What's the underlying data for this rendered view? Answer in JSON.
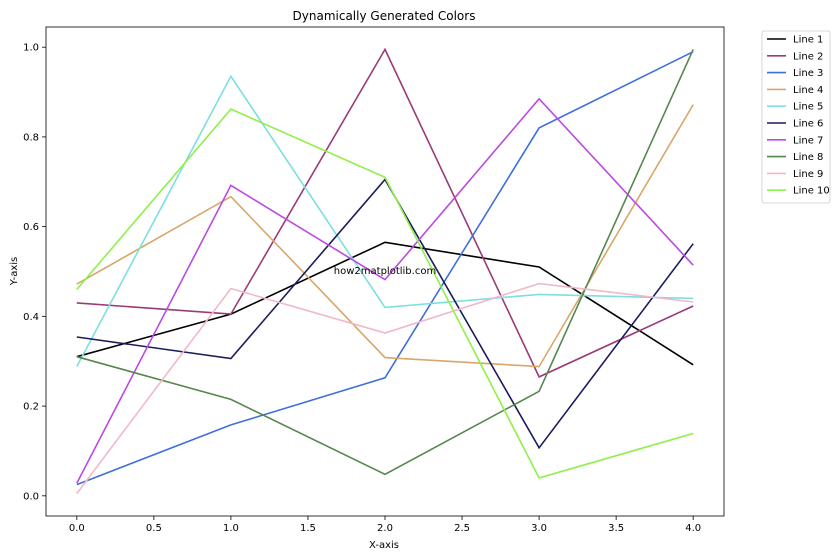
{
  "chart_data": {
    "type": "line",
    "title": "Dynamically Generated Colors",
    "xlabel": "X-axis",
    "ylabel": "Y-axis",
    "xlim": [
      -0.2,
      4.2
    ],
    "ylim": [
      -0.045,
      1.045
    ],
    "xticks": [
      0.0,
      0.5,
      1.0,
      1.5,
      2.0,
      2.5,
      3.0,
      3.5,
      4.0
    ],
    "xtick_labels": [
      "0.0",
      "0.5",
      "1.0",
      "1.5",
      "2.0",
      "2.5",
      "3.0",
      "3.5",
      "4.0"
    ],
    "yticks": [
      0.0,
      0.2,
      0.4,
      0.6,
      0.8,
      1.0
    ],
    "ytick_labels": [
      "0.0",
      "0.2",
      "0.4",
      "0.6",
      "0.8",
      "1.0"
    ],
    "grid": false,
    "legend_position": "outside-top-right",
    "annotation": "how2matplotlib.com",
    "x": [
      0,
      1,
      2,
      3,
      4
    ],
    "series": [
      {
        "name": "Line 1",
        "color": "#000000",
        "values": [
          0.31,
          0.405,
          0.565,
          0.51,
          0.292
        ]
      },
      {
        "name": "Line 2",
        "color": "#9b3a78",
        "values": [
          0.43,
          0.405,
          0.995,
          0.265,
          0.423
        ]
      },
      {
        "name": "Line 3",
        "color": "#3f6fdd",
        "values": [
          0.025,
          0.158,
          0.263,
          0.82,
          0.99
        ]
      },
      {
        "name": "Line 4",
        "color": "#d9a66a",
        "values": [
          0.472,
          0.667,
          0.308,
          0.288,
          0.872
        ]
      },
      {
        "name": "Line 5",
        "color": "#7ddfe0",
        "values": [
          0.288,
          0.935,
          0.42,
          0.449,
          0.44
        ]
      },
      {
        "name": "Line 6",
        "color": "#1c1c5c",
        "values": [
          0.354,
          0.306,
          0.705,
          0.107,
          0.562
        ]
      },
      {
        "name": "Line 7",
        "color": "#bb4be0",
        "values": [
          0.028,
          0.692,
          0.482,
          0.885,
          0.514
        ]
      },
      {
        "name": "Line 8",
        "color": "#55874f",
        "values": [
          0.31,
          0.215,
          0.048,
          0.233,
          0.995
        ]
      },
      {
        "name": "Line 9",
        "color": "#f0b8c8",
        "values": [
          0.005,
          0.462,
          0.363,
          0.473,
          0.432
        ]
      },
      {
        "name": "Line 10",
        "color": "#8ff04a",
        "values": [
          0.46,
          0.862,
          0.71,
          0.04,
          0.139
        ]
      }
    ]
  }
}
